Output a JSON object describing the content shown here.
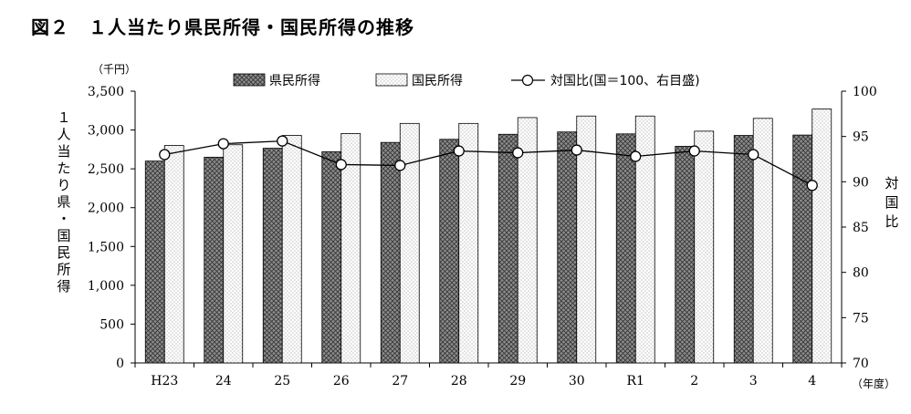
{
  "title": "図２　１人当たり県民所得・国民所得の推移",
  "chart_data": {
    "type": "bar",
    "categories": [
      "H23",
      "24",
      "25",
      "26",
      "27",
      "28",
      "29",
      "30",
      "R1",
      "2",
      "3",
      "4"
    ],
    "series": [
      {
        "name": "県民所得",
        "type": "bar",
        "axis": "left",
        "values": [
          2600,
          2650,
          2765,
          2720,
          2840,
          2880,
          2945,
          2975,
          2950,
          2790,
          2930,
          2935
        ]
      },
      {
        "name": "国民所得",
        "type": "bar",
        "axis": "left",
        "values": [
          2800,
          2810,
          2930,
          2955,
          3085,
          3085,
          3160,
          3180,
          3180,
          2985,
          3150,
          3270
        ]
      },
      {
        "name": "対国比(国＝100、右目盛)",
        "type": "line",
        "axis": "right",
        "values": [
          93.0,
          94.2,
          94.5,
          91.9,
          91.8,
          93.4,
          93.2,
          93.5,
          92.8,
          93.4,
          93.0,
          89.6
        ]
      }
    ],
    "ylim": [
      0,
      3500
    ],
    "yticks": [
      "0",
      "500",
      "1,000",
      "1,500",
      "2,000",
      "2,500",
      "3,000",
      "3,500"
    ],
    "y2lim": [
      70,
      100
    ],
    "y2ticks": [
      "70",
      "75",
      "80",
      "85",
      "90",
      "95",
      "100"
    ],
    "unit_left": "（千円）",
    "unit_x": "（年度）",
    "ylabel": "１人当たり県・国民所得",
    "y2label": "対国比",
    "legend_position": "top",
    "colors": {
      "bar1_fill": "#7a7a7a",
      "bar2_fill": "#ffffff",
      "line": "#000000"
    }
  }
}
